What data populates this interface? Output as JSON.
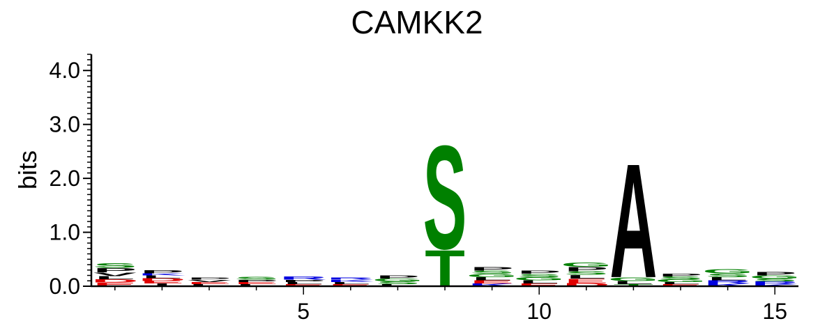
{
  "chart_data": {
    "type": "sequence-logo",
    "title": "CAMKK2",
    "ylabel": "bits",
    "xlabel": "",
    "ylim": [
      0,
      4.3
    ],
    "y_ticks": [
      "0.0",
      "1.0",
      "2.0",
      "3.0",
      "4.0"
    ],
    "x_ticks": [
      5,
      10,
      15
    ],
    "positions": 15,
    "colors": {
      "acidic": "#e00000",
      "basic": "#0000e0",
      "polar": "#008000",
      "hydrophobic": "#000000"
    },
    "columns": [
      {
        "pos": 1,
        "letters": [
          {
            "aa": "E",
            "h": 0.07
          },
          {
            "aa": "D",
            "h": 0.06
          },
          {
            "aa": "L",
            "h": 0.06
          },
          {
            "aa": "V",
            "h": 0.07
          },
          {
            "aa": "P",
            "h": 0.08
          },
          {
            "aa": "S",
            "h": 0.09
          }
        ]
      },
      {
        "pos": 2,
        "letters": [
          {
            "aa": "I",
            "h": 0.05
          },
          {
            "aa": "E",
            "h": 0.05
          },
          {
            "aa": "D",
            "h": 0.05
          },
          {
            "aa": "L",
            "h": 0.05
          },
          {
            "aa": "K",
            "h": 0.04
          },
          {
            "aa": "P",
            "h": 0.06
          }
        ]
      },
      {
        "pos": 3,
        "letters": [
          {
            "aa": "L",
            "h": 0.04
          },
          {
            "aa": "E",
            "h": 0.04
          },
          {
            "aa": "V",
            "h": 0.04
          },
          {
            "aa": "P",
            "h": 0.04
          }
        ]
      },
      {
        "pos": 4,
        "letters": [
          {
            "aa": "L",
            "h": 0.04
          },
          {
            "aa": "E",
            "h": 0.04
          },
          {
            "aa": "P",
            "h": 0.04
          },
          {
            "aa": "S",
            "h": 0.05
          }
        ]
      },
      {
        "pos": 5,
        "letters": [
          {
            "aa": "E",
            "h": 0.04
          },
          {
            "aa": "L",
            "h": 0.04
          },
          {
            "aa": "P",
            "h": 0.04
          },
          {
            "aa": "R",
            "h": 0.06
          }
        ]
      },
      {
        "pos": 6,
        "letters": [
          {
            "aa": "E",
            "h": 0.04
          },
          {
            "aa": "L",
            "h": 0.04
          },
          {
            "aa": "K",
            "h": 0.04
          },
          {
            "aa": "R",
            "h": 0.04
          }
        ]
      },
      {
        "pos": 7,
        "letters": [
          {
            "aa": "L",
            "h": 0.04
          },
          {
            "aa": "S",
            "h": 0.05
          },
          {
            "aa": "G",
            "h": 0.05
          },
          {
            "aa": "P",
            "h": 0.06
          }
        ]
      },
      {
        "pos": 8,
        "letters": [
          {
            "aa": "T",
            "h": 0.7
          },
          {
            "aa": "S",
            "h": 2.0
          }
        ]
      },
      {
        "pos": 9,
        "letters": [
          {
            "aa": "K",
            "h": 0.05
          },
          {
            "aa": "E",
            "h": 0.06
          },
          {
            "aa": "L",
            "h": 0.06
          },
          {
            "aa": "G",
            "h": 0.06
          },
          {
            "aa": "S",
            "h": 0.06
          },
          {
            "aa": "P",
            "h": 0.07
          }
        ]
      },
      {
        "pos": 10,
        "letters": [
          {
            "aa": "E",
            "h": 0.05
          },
          {
            "aa": "L",
            "h": 0.06
          },
          {
            "aa": "G",
            "h": 0.06
          },
          {
            "aa": "S",
            "h": 0.06
          },
          {
            "aa": "P",
            "h": 0.06
          }
        ]
      },
      {
        "pos": 11,
        "letters": [
          {
            "aa": "D",
            "h": 0.06
          },
          {
            "aa": "E",
            "h": 0.08
          },
          {
            "aa": "L",
            "h": 0.07
          },
          {
            "aa": "S",
            "h": 0.07
          },
          {
            "aa": "P",
            "h": 0.08
          },
          {
            "aa": "G",
            "h": 0.08
          }
        ]
      },
      {
        "pos": 12,
        "letters": [
          {
            "aa": "T",
            "h": 0.04
          },
          {
            "aa": "L",
            "h": 0.06
          },
          {
            "aa": "G",
            "h": 0.07
          },
          {
            "aa": "A",
            "h": 2.2
          }
        ]
      },
      {
        "pos": 13,
        "letters": [
          {
            "aa": "E",
            "h": 0.04
          },
          {
            "aa": "L",
            "h": 0.04
          },
          {
            "aa": "G",
            "h": 0.05
          },
          {
            "aa": "S",
            "h": 0.05
          },
          {
            "aa": "P",
            "h": 0.05
          }
        ]
      },
      {
        "pos": 14,
        "letters": [
          {
            "aa": "K",
            "h": 0.05
          },
          {
            "aa": "R",
            "h": 0.06
          },
          {
            "aa": "L",
            "h": 0.06
          },
          {
            "aa": "S",
            "h": 0.07
          },
          {
            "aa": "G",
            "h": 0.08
          }
        ]
      },
      {
        "pos": 15,
        "letters": [
          {
            "aa": "K",
            "h": 0.04
          },
          {
            "aa": "R",
            "h": 0.05
          },
          {
            "aa": "S",
            "h": 0.05
          },
          {
            "aa": "G",
            "h": 0.06
          },
          {
            "aa": "P",
            "h": 0.07
          }
        ]
      }
    ]
  }
}
